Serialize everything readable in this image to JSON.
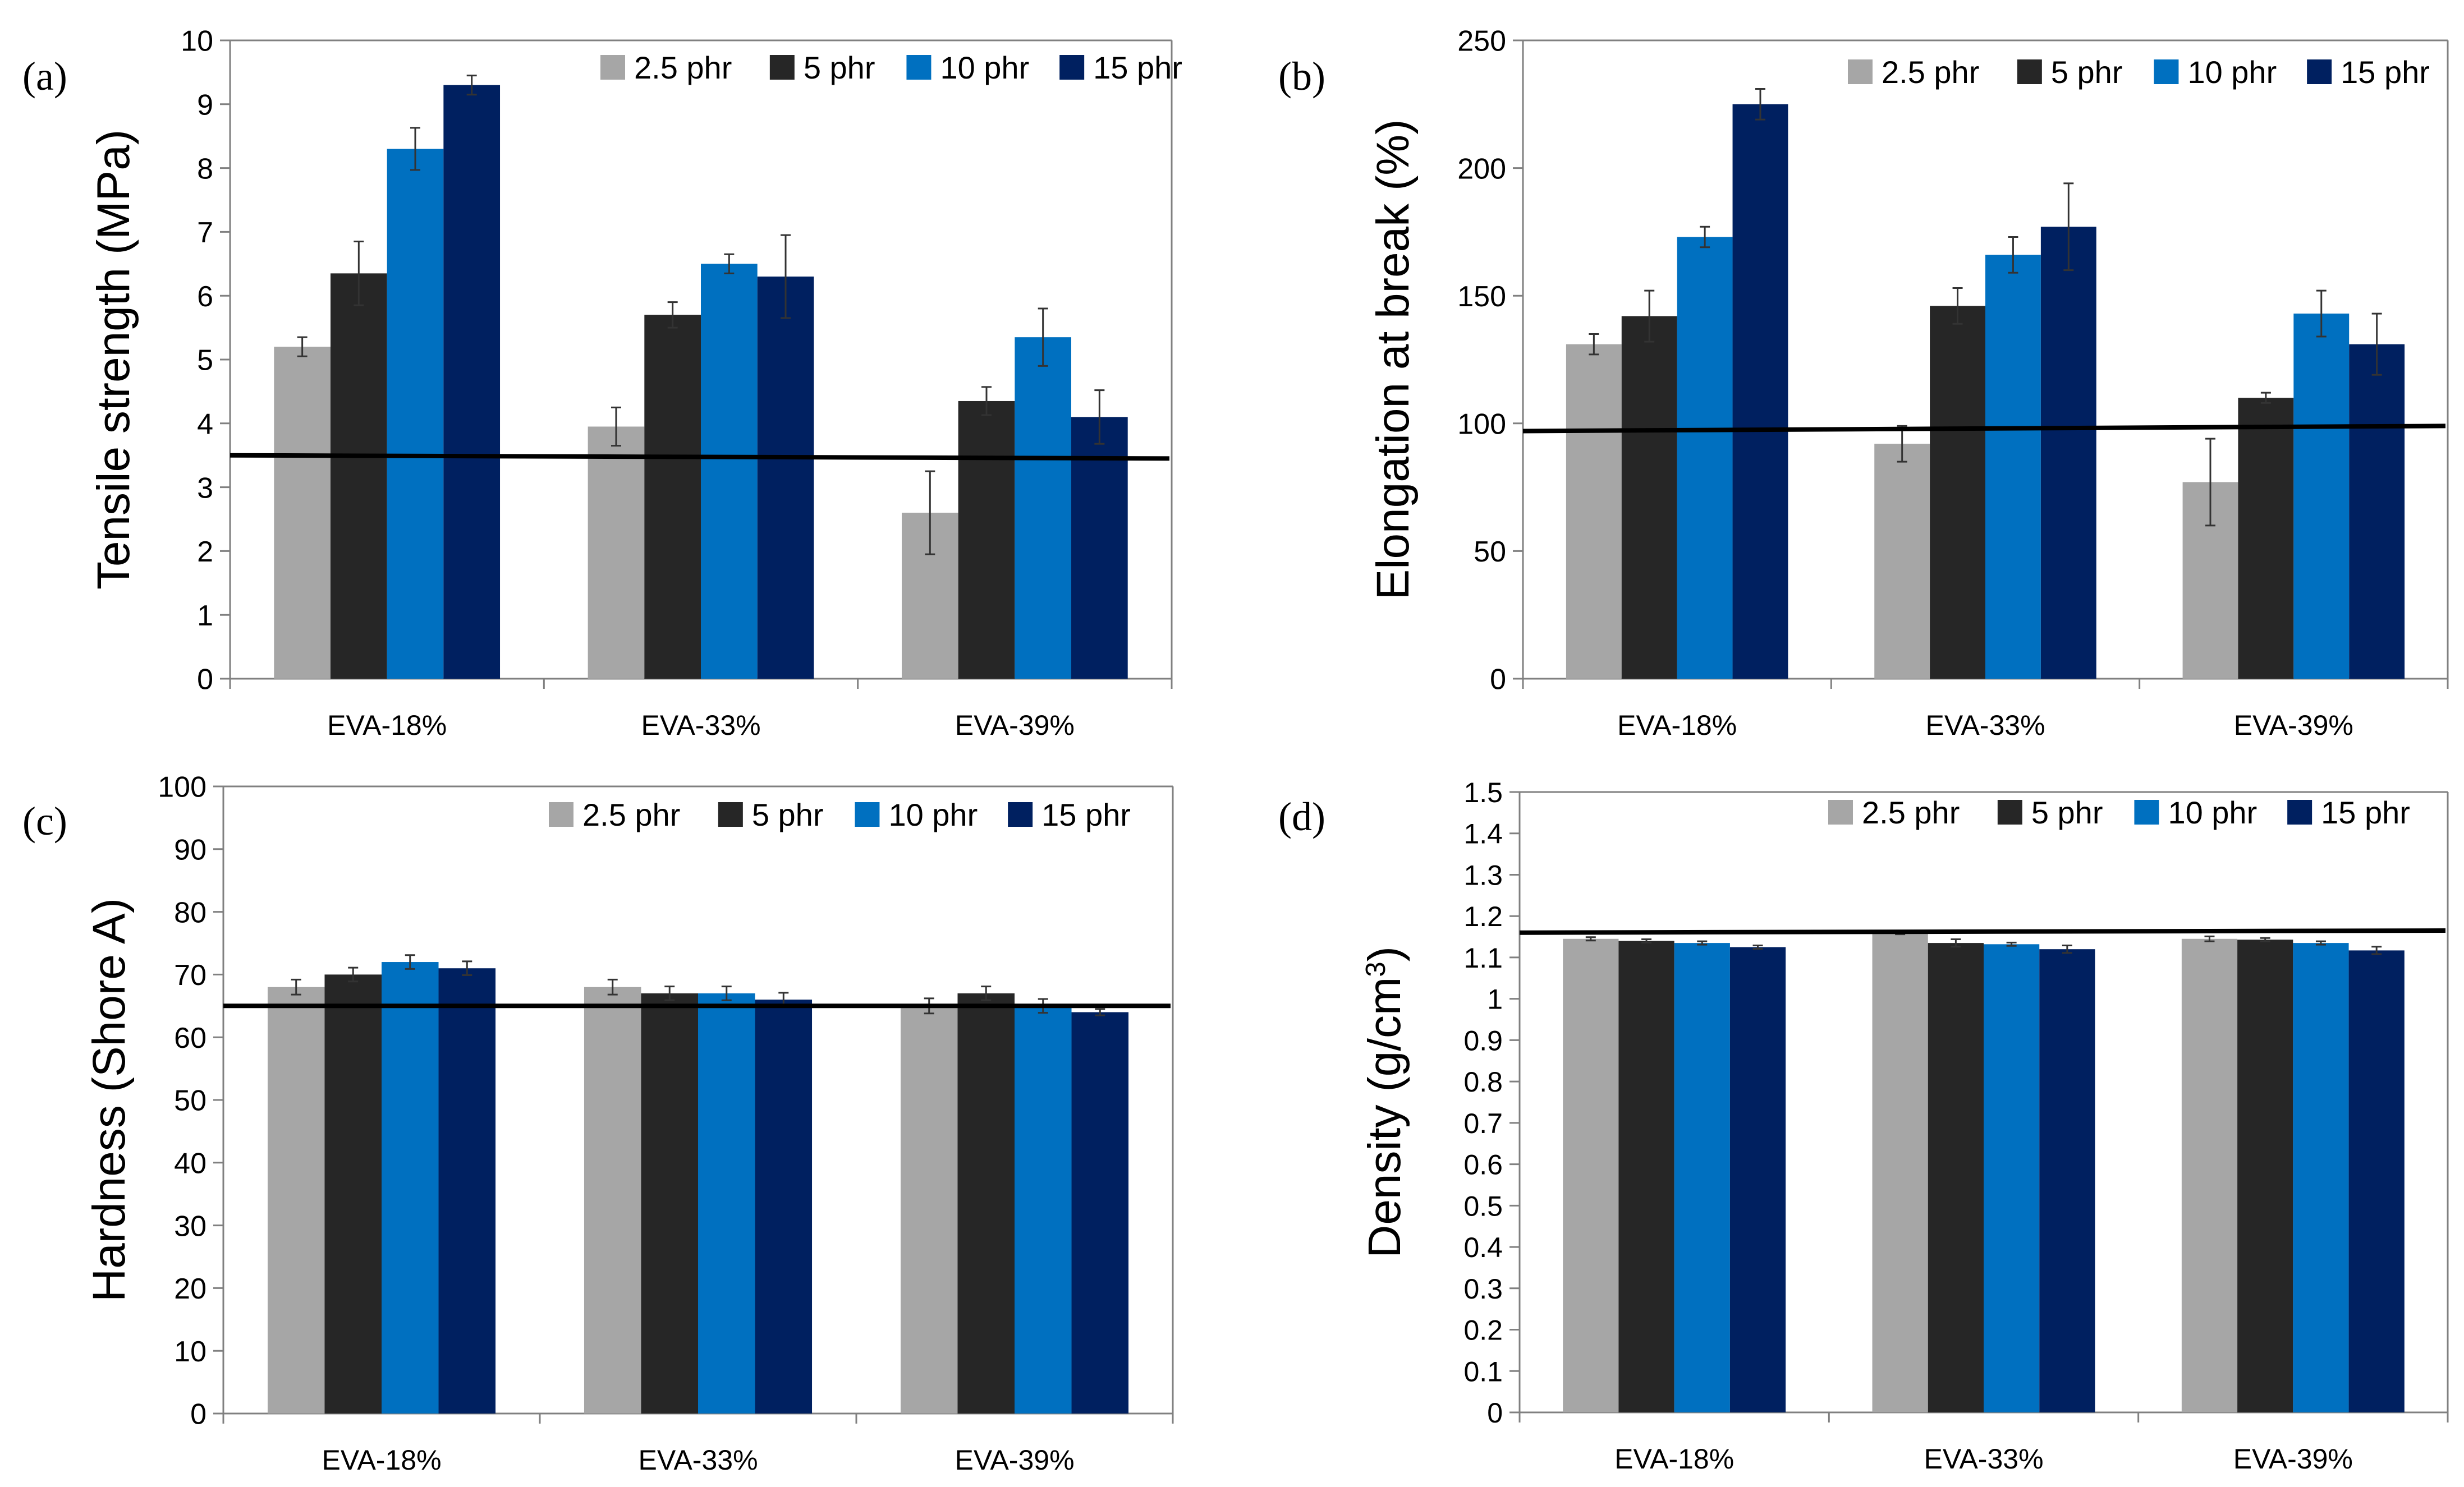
{
  "colors": {
    "2.5 phr": "#a6a6a6",
    "5 phr": "#262626",
    "10 phr": "#0070c0",
    "15 phr": "#002060",
    "axis": "#808080",
    "reference_line": "#000000"
  },
  "chart_data": [
    {
      "type": "bar",
      "panel_label": "(a)",
      "ylabel": "Tensile strength (MPa)",
      "ylabel_sup": "",
      "ylabel_tail": "",
      "xlabel": "",
      "title": "",
      "categories": [
        "EVA-18%",
        "EVA-33%",
        "EVA-39%"
      ],
      "ylim": [
        0,
        10
      ],
      "yticks": [
        "0",
        "1",
        "2",
        "3",
        "4",
        "5",
        "6",
        "7",
        "8",
        "9",
        "10"
      ],
      "legend_position": "top-right",
      "series": [
        {
          "name": "2.5 phr",
          "values": [
            5.2,
            3.95,
            2.6
          ],
          "errors": [
            0.15,
            0.3,
            0.65
          ]
        },
        {
          "name": "5 phr",
          "values": [
            6.35,
            5.7,
            4.35
          ],
          "errors": [
            0.5,
            0.2,
            0.22
          ]
        },
        {
          "name": "10 phr",
          "values": [
            8.3,
            6.5,
            5.35
          ],
          "errors": [
            0.33,
            0.15,
            0.45
          ]
        },
        {
          "name": "15 phr",
          "values": [
            9.3,
            6.3,
            4.1
          ],
          "errors": [
            0.15,
            0.65,
            0.42
          ]
        }
      ],
      "reference_line": [
        3.5,
        3.45
      ]
    },
    {
      "type": "bar",
      "panel_label": "(b)",
      "ylabel": "Elongation at break (%)",
      "ylabel_sup": "",
      "ylabel_tail": "",
      "xlabel": "",
      "title": "",
      "categories": [
        "EVA-18%",
        "EVA-33%",
        "EVA-39%"
      ],
      "ylim": [
        0,
        250
      ],
      "yticks": [
        "0",
        "50",
        "100",
        "150",
        "200",
        "250"
      ],
      "legend_position": "top-right",
      "series": [
        {
          "name": "2.5 phr",
          "values": [
            131,
            92,
            77
          ],
          "errors": [
            4,
            7,
            17
          ]
        },
        {
          "name": "5 phr",
          "values": [
            142,
            146,
            110
          ],
          "errors": [
            10,
            7,
            2
          ]
        },
        {
          "name": "10 phr",
          "values": [
            173,
            166,
            143
          ],
          "errors": [
            4,
            7,
            9
          ]
        },
        {
          "name": "15 phr",
          "values": [
            225,
            177,
            131
          ],
          "errors": [
            6,
            17,
            12
          ]
        }
      ],
      "reference_line": [
        97,
        99
      ]
    },
    {
      "type": "bar",
      "panel_label": "(c)",
      "ylabel": "Hardness (Shore A)",
      "ylabel_sup": "",
      "ylabel_tail": "",
      "xlabel": "",
      "title": "",
      "categories": [
        "EVA-18%",
        "EVA-33%",
        "EVA-39%"
      ],
      "ylim": [
        0,
        100
      ],
      "yticks": [
        "0",
        "10",
        "20",
        "30",
        "40",
        "50",
        "60",
        "70",
        "80",
        "90",
        "100"
      ],
      "legend_position": "top-right",
      "series": [
        {
          "name": "2.5 phr",
          "values": [
            68,
            68,
            65
          ],
          "errors": [
            1.2,
            1.2,
            1.2
          ]
        },
        {
          "name": "5 phr",
          "values": [
            70,
            67,
            67
          ],
          "errors": [
            1.1,
            1.1,
            1.1
          ]
        },
        {
          "name": "10 phr",
          "values": [
            72,
            67,
            65
          ],
          "errors": [
            1.1,
            1.1,
            1.1
          ]
        },
        {
          "name": "15 phr",
          "values": [
            71,
            66,
            64
          ],
          "errors": [
            1.1,
            1.1,
            0.5
          ]
        }
      ],
      "reference_line": [
        65,
        65
      ]
    },
    {
      "type": "bar",
      "panel_label": "(d)",
      "ylabel": "Density (g/cm",
      "ylabel_sup": "3",
      "ylabel_tail": ")",
      "xlabel": "",
      "title": "",
      "categories": [
        "EVA-18%",
        "EVA-33%",
        "EVA-39%"
      ],
      "ylim": [
        0,
        1.5
      ],
      "yticks": [
        "0",
        "0.1",
        "0.2",
        "0.3",
        "0.4",
        "0.5",
        "0.6",
        "0.7",
        "0.8",
        "0.9",
        "1",
        "1.1",
        "1.2",
        "1.3",
        "1.4",
        "1.5"
      ],
      "legend_position": "top-right",
      "series": [
        {
          "name": "2.5 phr",
          "values": [
            1.145,
            1.16,
            1.145
          ],
          "errors": [
            0.004,
            0.004,
            0.006
          ]
        },
        {
          "name": "5 phr",
          "values": [
            1.14,
            1.135,
            1.143
          ],
          "errors": [
            0.004,
            0.009,
            0.004
          ]
        },
        {
          "name": "10 phr",
          "values": [
            1.135,
            1.132,
            1.135
          ],
          "errors": [
            0.004,
            0.004,
            0.004
          ]
        },
        {
          "name": "15 phr",
          "values": [
            1.125,
            1.12,
            1.117
          ],
          "errors": [
            0.004,
            0.009,
            0.009
          ]
        }
      ],
      "reference_line": [
        1.16,
        1.165
      ]
    }
  ]
}
